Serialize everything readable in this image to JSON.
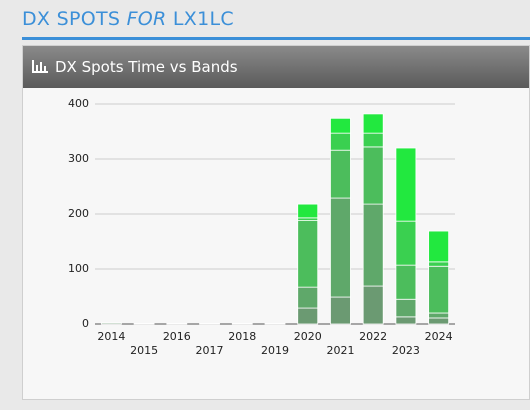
{
  "header": {
    "title_prefix": "DX SPOTS",
    "title_emphasis": "FOR",
    "title_suffix": "LX1LC"
  },
  "chart_data": {
    "type": "stacked-bar",
    "title": "DX Spots Time vs Bands",
    "categories": [
      "2014",
      "2015",
      "2016",
      "2017",
      "2018",
      "2019",
      "2020",
      "2021",
      "2022",
      "2023",
      "2024"
    ],
    "series": [
      {
        "color": "#6b9a72",
        "values": [
          2,
          1,
          1,
          1,
          1,
          1,
          29,
          49,
          69,
          13,
          11
        ]
      },
      {
        "color": "#5fa86a",
        "values": [
          0,
          0,
          0,
          0,
          0,
          0,
          38,
          180,
          149,
          32,
          9
        ]
      },
      {
        "color": "#4cbd5c",
        "values": [
          0,
          0,
          0,
          0,
          0,
          0,
          121,
          87,
          104,
          62,
          85
        ]
      },
      {
        "color": "#3ad050",
        "values": [
          0,
          0,
          0,
          0,
          0,
          0,
          5,
          31,
          25,
          80,
          8
        ]
      },
      {
        "color": "#22e83f",
        "values": [
          0,
          0,
          0,
          0,
          0,
          0,
          25,
          27,
          35,
          133,
          56
        ]
      }
    ],
    "ylim": [
      0,
      400
    ],
    "yticks": [
      0,
      100,
      200,
      300,
      400
    ],
    "grid": true
  }
}
